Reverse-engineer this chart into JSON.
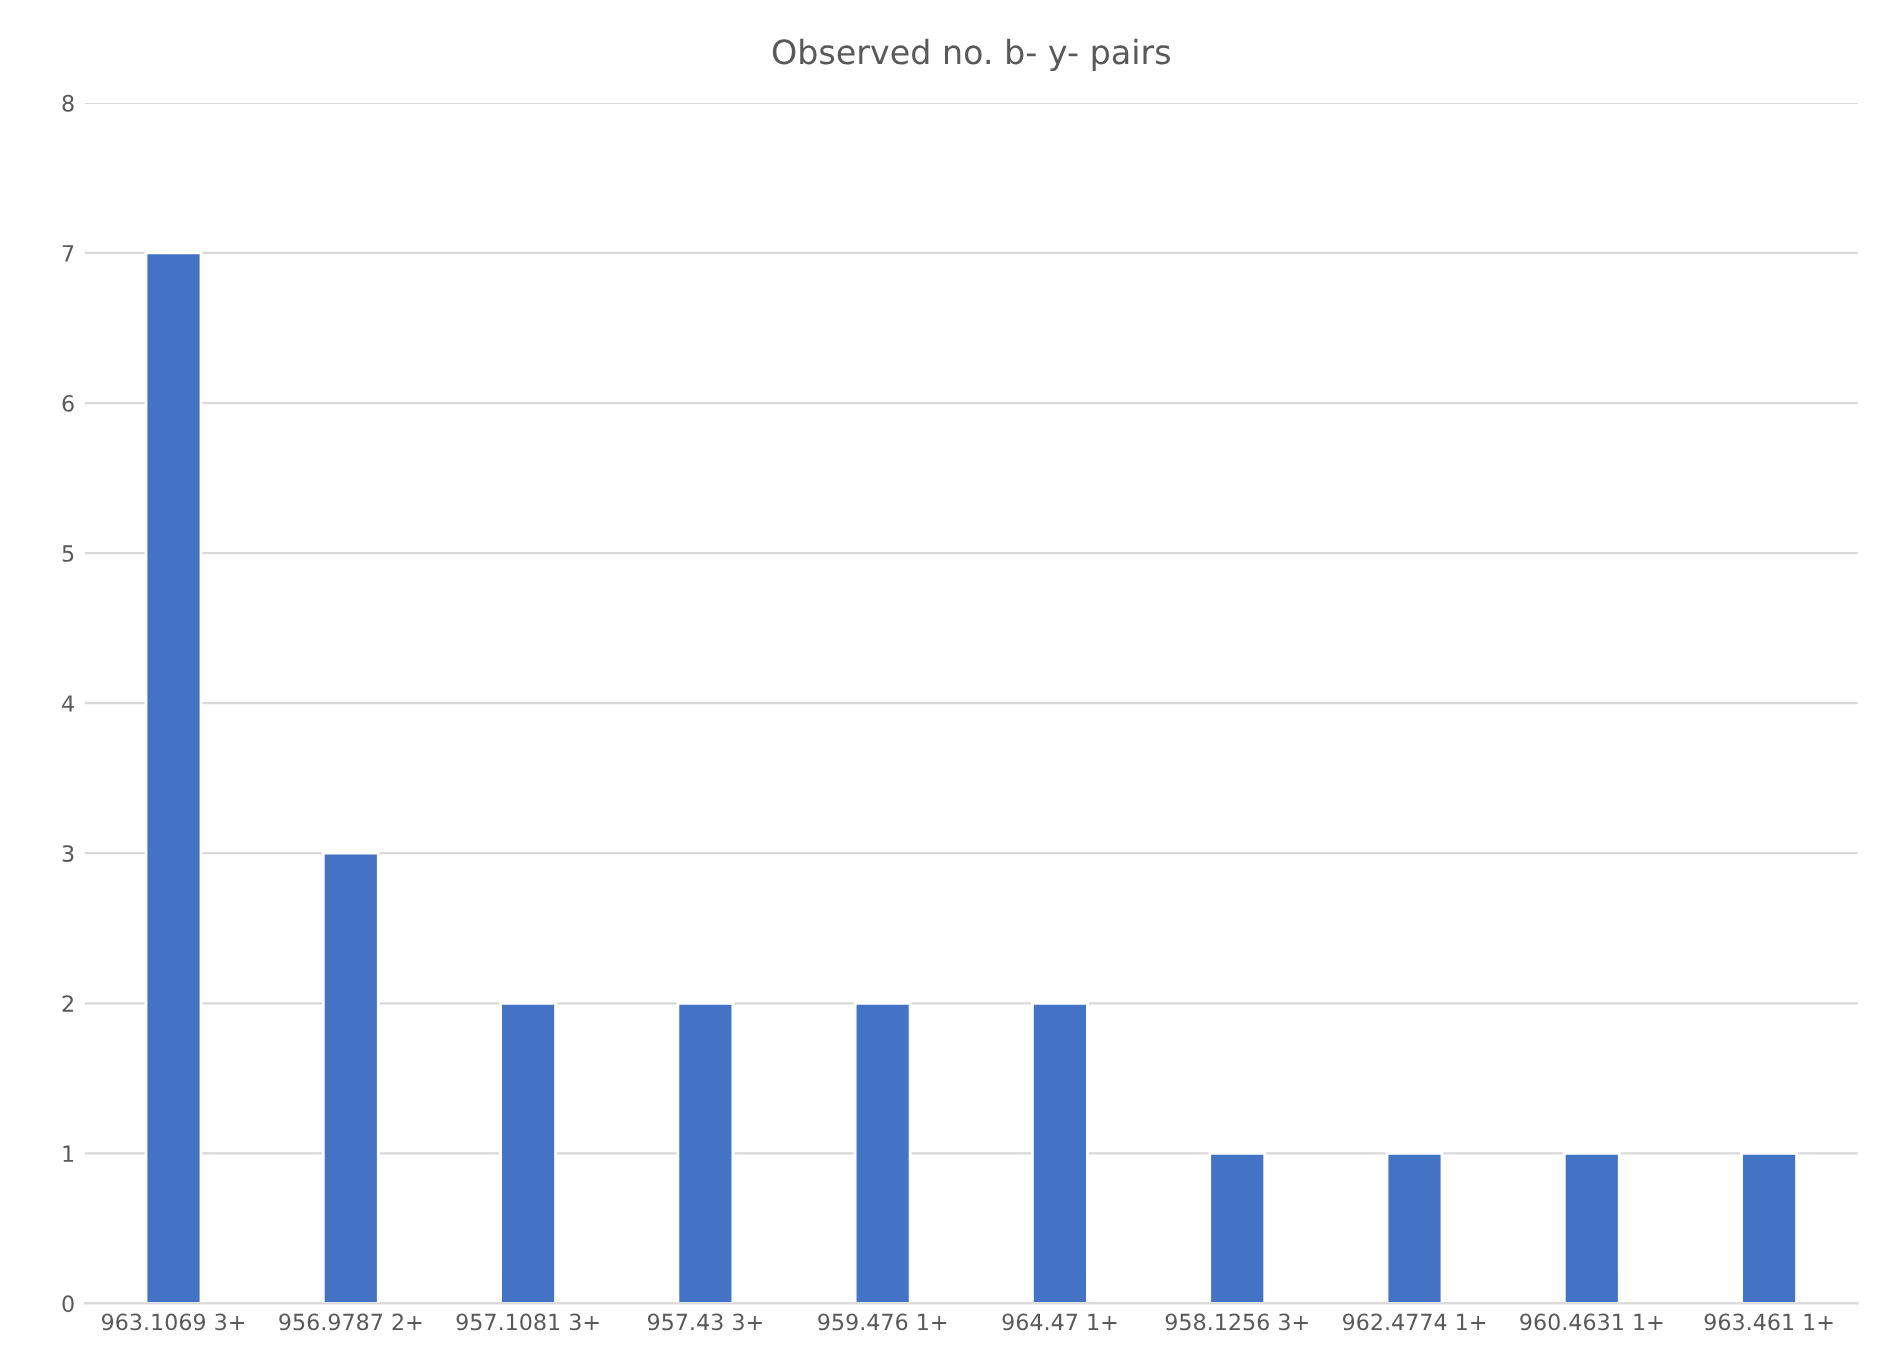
{
  "chart_data": {
    "type": "bar",
    "title": "Observed no. b- y- pairs",
    "categories": [
      "963.1069 3+",
      "956.9787 2+",
      "957.1081 3+",
      "957.43 3+",
      "959.476 1+",
      "964.47 1+",
      "958.1256 3+",
      "962.4774 1+",
      "960.4631 1+",
      "963.461 1+"
    ],
    "values": [
      7,
      3,
      2,
      2,
      2,
      2,
      1,
      1,
      1,
      1
    ],
    "color": "#4472c4",
    "ylim": [
      0,
      8
    ],
    "yticks": [
      0,
      1,
      2,
      3,
      4,
      5,
      6,
      7,
      8
    ],
    "grid": "y",
    "legend": false
  }
}
